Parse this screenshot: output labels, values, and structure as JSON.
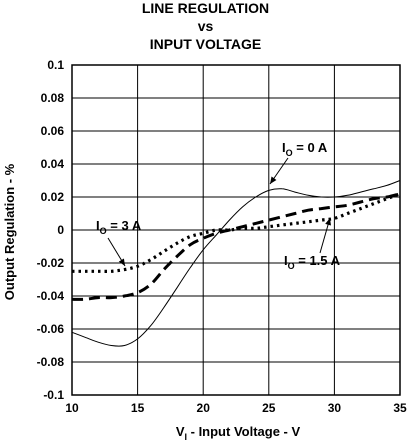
{
  "chart_data": {
    "type": "line",
    "title_lines": [
      "LINE REGULATION",
      "vs",
      "INPUT VOLTAGE"
    ],
    "xlabel": {
      "main": "V",
      "sub": "I",
      "rest": " - Input Voltage - V"
    },
    "ylabel": "Output Regulation - %",
    "xlim": [
      10,
      35
    ],
    "ylim": [
      -0.1,
      0.1
    ],
    "x_ticks": [
      "10",
      "15",
      "20",
      "25",
      "30",
      "35"
    ],
    "y_ticks": [
      "0.1",
      "0.08",
      "0.06",
      "0.04",
      "0.02",
      "0",
      "-0.02",
      "-0.04",
      "-0.06",
      "-0.08",
      "-0.1"
    ],
    "grid": true,
    "series": [
      {
        "name": "IO = 0 A",
        "label_main": "I",
        "label_sub": "O",
        "label_rest": " = 0 A",
        "style": "solid",
        "x": [
          10,
          11,
          12,
          13,
          14,
          15,
          16,
          17,
          18,
          19,
          20,
          21,
          22,
          23,
          24,
          25,
          26,
          27,
          28,
          29,
          30,
          31,
          32,
          33,
          34,
          35
        ],
        "y": [
          -0.062,
          -0.065,
          -0.068,
          -0.07,
          -0.07,
          -0.066,
          -0.058,
          -0.047,
          -0.035,
          -0.023,
          -0.012,
          -0.003,
          0.006,
          0.014,
          0.02,
          0.024,
          0.025,
          0.023,
          0.021,
          0.02,
          0.02,
          0.021,
          0.023,
          0.025,
          0.027,
          0.03
        ]
      },
      {
        "name": "IO = 1.5 A",
        "label_main": "I",
        "label_sub": "O",
        "label_rest": " = 1.5 A",
        "style": "dashed",
        "x": [
          10,
          11,
          12,
          13,
          14,
          15,
          16,
          17,
          18,
          19,
          20,
          21,
          22,
          23,
          24,
          25,
          26,
          27,
          28,
          29,
          30,
          31,
          32,
          33,
          34,
          35
        ],
        "y": [
          -0.042,
          -0.042,
          -0.041,
          -0.041,
          -0.04,
          -0.038,
          -0.033,
          -0.024,
          -0.016,
          -0.009,
          -0.005,
          -0.002,
          0.0,
          0.002,
          0.004,
          0.006,
          0.008,
          0.01,
          0.012,
          0.013,
          0.014,
          0.015,
          0.017,
          0.019,
          0.02,
          0.022
        ]
      },
      {
        "name": "IO = 3 A",
        "label_main": "I",
        "label_sub": "O",
        "label_rest": " = 3 A",
        "style": "dotted",
        "x": [
          10,
          11,
          12,
          13,
          14,
          15,
          16,
          17,
          18,
          19,
          20,
          21,
          22,
          23,
          24,
          25,
          26,
          27,
          28,
          29,
          30,
          31,
          32,
          33,
          34,
          35
        ],
        "y": [
          -0.025,
          -0.025,
          -0.025,
          -0.025,
          -0.024,
          -0.022,
          -0.018,
          -0.013,
          -0.008,
          -0.004,
          -0.002,
          0.0,
          0.0,
          0.001,
          0.001,
          0.002,
          0.003,
          0.004,
          0.005,
          0.006,
          0.007,
          0.01,
          0.013,
          0.016,
          0.019,
          0.022
        ]
      }
    ]
  }
}
